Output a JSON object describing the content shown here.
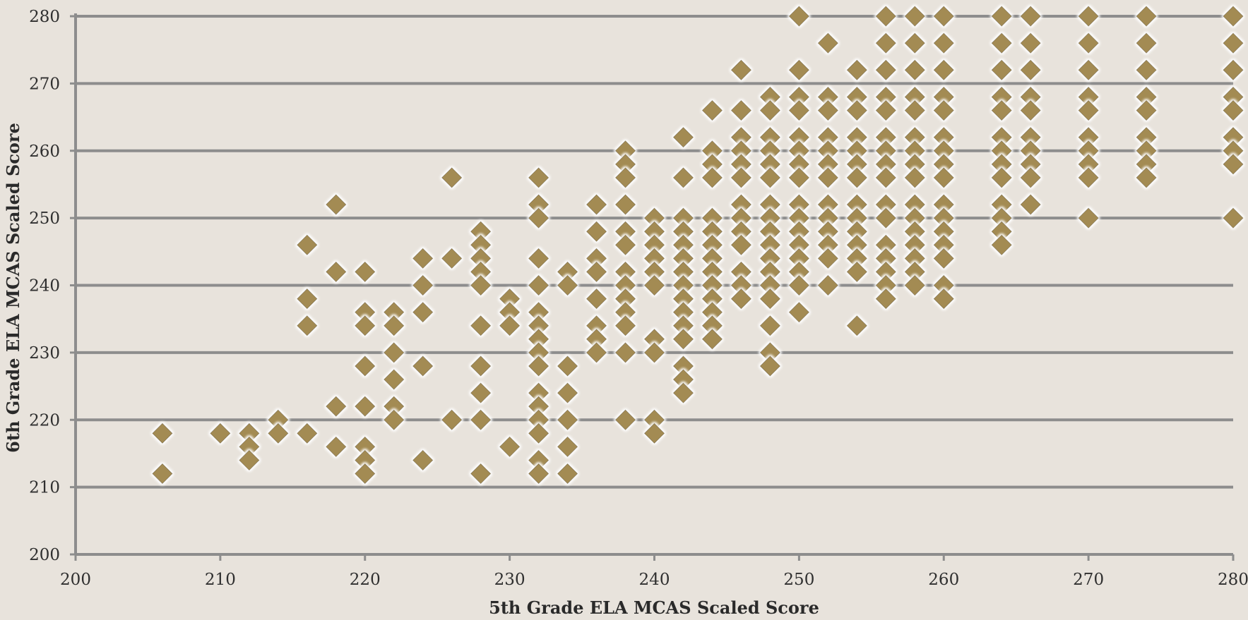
{
  "chart_data": {
    "type": "scatter",
    "title": "",
    "xlabel": "5th Grade ELA MCAS Scaled Score",
    "ylabel": "6th Grade ELA MCAS Scaled Score",
    "xlim": [
      200,
      280
    ],
    "ylim": [
      200,
      280
    ],
    "x_ticks": [
      200,
      210,
      220,
      230,
      240,
      250,
      260,
      270,
      280
    ],
    "y_ticks": [
      200,
      210,
      220,
      230,
      240,
      250,
      260,
      270,
      280
    ],
    "x_tick_labels": [
      "200",
      "210",
      "220",
      "230",
      "240",
      "250",
      "260",
      "270",
      "280"
    ],
    "y_tick_labels": [
      "200",
      "210",
      "220",
      "230",
      "240",
      "250",
      "260",
      "270",
      "280"
    ],
    "grid": "horizontal",
    "legend": "none",
    "marker": "diamond",
    "colors": {
      "marker": "#a38b52",
      "grid": "#8d8d8d",
      "background": "#e8e3dc"
    },
    "points": [
      [
        206,
        218
      ],
      [
        206,
        212
      ],
      [
        210,
        218
      ],
      [
        212,
        218
      ],
      [
        212,
        216
      ],
      [
        212,
        214
      ],
      [
        214,
        220
      ],
      [
        214,
        218
      ],
      [
        216,
        246
      ],
      [
        216,
        238
      ],
      [
        216,
        234
      ],
      [
        216,
        218
      ],
      [
        218,
        252
      ],
      [
        218,
        242
      ],
      [
        218,
        222
      ],
      [
        218,
        216
      ],
      [
        220,
        242
      ],
      [
        220,
        236
      ],
      [
        220,
        234
      ],
      [
        220,
        228
      ],
      [
        220,
        222
      ],
      [
        220,
        216
      ],
      [
        220,
        214
      ],
      [
        220,
        212
      ],
      [
        222,
        236
      ],
      [
        222,
        234
      ],
      [
        222,
        230
      ],
      [
        222,
        226
      ],
      [
        222,
        222
      ],
      [
        222,
        220
      ],
      [
        224,
        244
      ],
      [
        224,
        240
      ],
      [
        224,
        236
      ],
      [
        224,
        228
      ],
      [
        224,
        214
      ],
      [
        226,
        256
      ],
      [
        226,
        244
      ],
      [
        226,
        220
      ],
      [
        228,
        248
      ],
      [
        228,
        246
      ],
      [
        228,
        244
      ],
      [
        228,
        242
      ],
      [
        228,
        240
      ],
      [
        228,
        234
      ],
      [
        228,
        228
      ],
      [
        228,
        224
      ],
      [
        228,
        220
      ],
      [
        228,
        212
      ],
      [
        230,
        238
      ],
      [
        230,
        236
      ],
      [
        230,
        234
      ],
      [
        230,
        216
      ],
      [
        232,
        256
      ],
      [
        232,
        252
      ],
      [
        232,
        250
      ],
      [
        232,
        244
      ],
      [
        232,
        240
      ],
      [
        232,
        236
      ],
      [
        232,
        234
      ],
      [
        232,
        232
      ],
      [
        232,
        230
      ],
      [
        232,
        228
      ],
      [
        232,
        224
      ],
      [
        232,
        222
      ],
      [
        232,
        220
      ],
      [
        232,
        218
      ],
      [
        232,
        214
      ],
      [
        232,
        212
      ],
      [
        234,
        242
      ],
      [
        234,
        240
      ],
      [
        234,
        228
      ],
      [
        234,
        224
      ],
      [
        234,
        220
      ],
      [
        234,
        216
      ],
      [
        234,
        212
      ],
      [
        236,
        252
      ],
      [
        236,
        248
      ],
      [
        236,
        244
      ],
      [
        236,
        242
      ],
      [
        236,
        238
      ],
      [
        236,
        234
      ],
      [
        236,
        232
      ],
      [
        236,
        230
      ],
      [
        238,
        260
      ],
      [
        238,
        258
      ],
      [
        238,
        256
      ],
      [
        238,
        252
      ],
      [
        238,
        248
      ],
      [
        238,
        246
      ],
      [
        238,
        242
      ],
      [
        238,
        240
      ],
      [
        238,
        238
      ],
      [
        238,
        236
      ],
      [
        238,
        234
      ],
      [
        238,
        230
      ],
      [
        238,
        220
      ],
      [
        240,
        250
      ],
      [
        240,
        248
      ],
      [
        240,
        246
      ],
      [
        240,
        244
      ],
      [
        240,
        242
      ],
      [
        240,
        240
      ],
      [
        240,
        232
      ],
      [
        240,
        230
      ],
      [
        240,
        220
      ],
      [
        240,
        218
      ],
      [
        242,
        262
      ],
      [
        242,
        256
      ],
      [
        242,
        250
      ],
      [
        242,
        248
      ],
      [
        242,
        246
      ],
      [
        242,
        244
      ],
      [
        242,
        242
      ],
      [
        242,
        240
      ],
      [
        242,
        238
      ],
      [
        242,
        236
      ],
      [
        242,
        234
      ],
      [
        242,
        232
      ],
      [
        242,
        228
      ],
      [
        242,
        226
      ],
      [
        242,
        224
      ],
      [
        244,
        266
      ],
      [
        244,
        260
      ],
      [
        244,
        258
      ],
      [
        244,
        256
      ],
      [
        244,
        250
      ],
      [
        244,
        248
      ],
      [
        244,
        246
      ],
      [
        244,
        244
      ],
      [
        244,
        242
      ],
      [
        244,
        240
      ],
      [
        244,
        238
      ],
      [
        244,
        236
      ],
      [
        244,
        234
      ],
      [
        244,
        232
      ],
      [
        246,
        272
      ],
      [
        246,
        266
      ],
      [
        246,
        262
      ],
      [
        246,
        260
      ],
      [
        246,
        258
      ],
      [
        246,
        256
      ],
      [
        246,
        252
      ],
      [
        246,
        250
      ],
      [
        246,
        248
      ],
      [
        246,
        246
      ],
      [
        246,
        242
      ],
      [
        246,
        240
      ],
      [
        246,
        238
      ],
      [
        248,
        268
      ],
      [
        248,
        266
      ],
      [
        248,
        262
      ],
      [
        248,
        260
      ],
      [
        248,
        258
      ],
      [
        248,
        256
      ],
      [
        248,
        252
      ],
      [
        248,
        250
      ],
      [
        248,
        248
      ],
      [
        248,
        246
      ],
      [
        248,
        244
      ],
      [
        248,
        242
      ],
      [
        248,
        240
      ],
      [
        248,
        238
      ],
      [
        248,
        234
      ],
      [
        248,
        230
      ],
      [
        248,
        228
      ],
      [
        250,
        280
      ],
      [
        250,
        272
      ],
      [
        250,
        268
      ],
      [
        250,
        266
      ],
      [
        250,
        262
      ],
      [
        250,
        260
      ],
      [
        250,
        258
      ],
      [
        250,
        256
      ],
      [
        250,
        252
      ],
      [
        250,
        250
      ],
      [
        250,
        248
      ],
      [
        250,
        246
      ],
      [
        250,
        244
      ],
      [
        250,
        242
      ],
      [
        250,
        240
      ],
      [
        250,
        236
      ],
      [
        252,
        276
      ],
      [
        252,
        268
      ],
      [
        252,
        266
      ],
      [
        252,
        262
      ],
      [
        252,
        260
      ],
      [
        252,
        258
      ],
      [
        252,
        256
      ],
      [
        252,
        252
      ],
      [
        252,
        250
      ],
      [
        252,
        248
      ],
      [
        252,
        246
      ],
      [
        252,
        244
      ],
      [
        252,
        240
      ],
      [
        254,
        272
      ],
      [
        254,
        268
      ],
      [
        254,
        266
      ],
      [
        254,
        262
      ],
      [
        254,
        260
      ],
      [
        254,
        258
      ],
      [
        254,
        256
      ],
      [
        254,
        252
      ],
      [
        254,
        250
      ],
      [
        254,
        248
      ],
      [
        254,
        246
      ],
      [
        254,
        244
      ],
      [
        254,
        242
      ],
      [
        254,
        234
      ],
      [
        256,
        280
      ],
      [
        256,
        276
      ],
      [
        256,
        272
      ],
      [
        256,
        268
      ],
      [
        256,
        266
      ],
      [
        256,
        262
      ],
      [
        256,
        260
      ],
      [
        256,
        258
      ],
      [
        256,
        256
      ],
      [
        256,
        252
      ],
      [
        256,
        250
      ],
      [
        256,
        246
      ],
      [
        256,
        244
      ],
      [
        256,
        242
      ],
      [
        256,
        240
      ],
      [
        256,
        238
      ],
      [
        258,
        280
      ],
      [
        258,
        276
      ],
      [
        258,
        272
      ],
      [
        258,
        268
      ],
      [
        258,
        266
      ],
      [
        258,
        262
      ],
      [
        258,
        260
      ],
      [
        258,
        258
      ],
      [
        258,
        256
      ],
      [
        258,
        252
      ],
      [
        258,
        250
      ],
      [
        258,
        248
      ],
      [
        258,
        246
      ],
      [
        258,
        244
      ],
      [
        258,
        242
      ],
      [
        258,
        240
      ],
      [
        260,
        280
      ],
      [
        260,
        276
      ],
      [
        260,
        272
      ],
      [
        260,
        268
      ],
      [
        260,
        266
      ],
      [
        260,
        262
      ],
      [
        260,
        260
      ],
      [
        260,
        258
      ],
      [
        260,
        256
      ],
      [
        260,
        252
      ],
      [
        260,
        250
      ],
      [
        260,
        248
      ],
      [
        260,
        246
      ],
      [
        260,
        244
      ],
      [
        260,
        240
      ],
      [
        260,
        238
      ],
      [
        264,
        280
      ],
      [
        264,
        276
      ],
      [
        264,
        272
      ],
      [
        264,
        268
      ],
      [
        264,
        266
      ],
      [
        264,
        262
      ],
      [
        264,
        260
      ],
      [
        264,
        258
      ],
      [
        264,
        256
      ],
      [
        264,
        252
      ],
      [
        264,
        250
      ],
      [
        264,
        248
      ],
      [
        264,
        246
      ],
      [
        266,
        280
      ],
      [
        266,
        276
      ],
      [
        266,
        272
      ],
      [
        266,
        268
      ],
      [
        266,
        266
      ],
      [
        266,
        262
      ],
      [
        266,
        260
      ],
      [
        266,
        258
      ],
      [
        266,
        256
      ],
      [
        266,
        252
      ],
      [
        270,
        280
      ],
      [
        270,
        276
      ],
      [
        270,
        272
      ],
      [
        270,
        268
      ],
      [
        270,
        266
      ],
      [
        270,
        262
      ],
      [
        270,
        260
      ],
      [
        270,
        258
      ],
      [
        270,
        256
      ],
      [
        270,
        250
      ],
      [
        274,
        280
      ],
      [
        274,
        276
      ],
      [
        274,
        272
      ],
      [
        274,
        268
      ],
      [
        274,
        266
      ],
      [
        274,
        262
      ],
      [
        274,
        260
      ],
      [
        274,
        258
      ],
      [
        274,
        256
      ],
      [
        280,
        280
      ],
      [
        280,
        276
      ],
      [
        280,
        272
      ],
      [
        280,
        268
      ],
      [
        280,
        266
      ],
      [
        280,
        262
      ],
      [
        280,
        260
      ],
      [
        280,
        258
      ],
      [
        280,
        250
      ]
    ]
  }
}
